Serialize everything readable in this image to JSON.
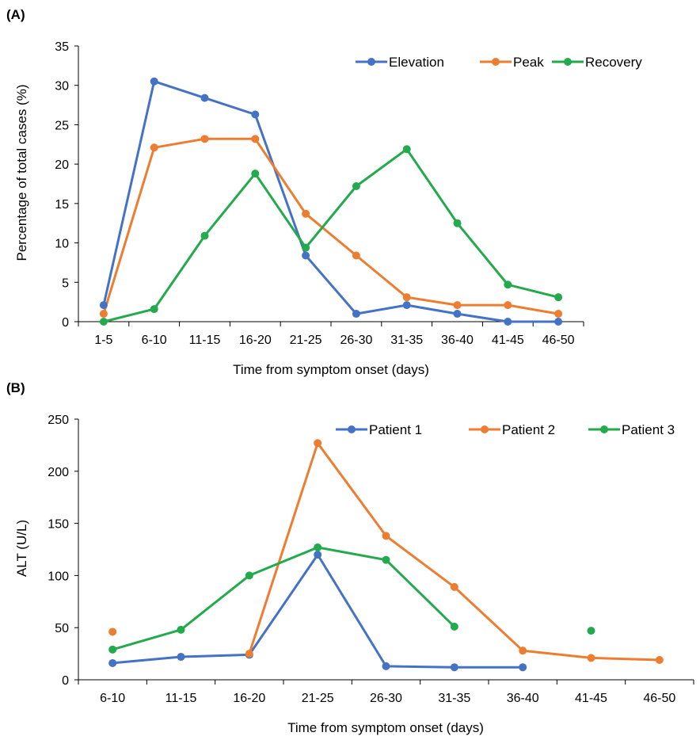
{
  "chart_data": [
    {
      "panel_label": "(A)",
      "type": "line",
      "categories": [
        "1-5",
        "6-10",
        "11-15",
        "16-20",
        "21-25",
        "26-30",
        "31-35",
        "36-40",
        "41-45",
        "46-50"
      ],
      "series": [
        {
          "name": "Elevation",
          "color": "#4472C4",
          "values": [
            2.1,
            30.5,
            28.4,
            26.3,
            8.4,
            1.0,
            2.1,
            1.0,
            0.0,
            0.0
          ]
        },
        {
          "name": "Peak",
          "color": "#ED7D31",
          "values": [
            1.0,
            22.1,
            23.2,
            23.2,
            13.7,
            8.4,
            3.1,
            2.1,
            2.1,
            1.0
          ]
        },
        {
          "name": "Recovery",
          "color": "#22AA4C",
          "values": [
            0.0,
            1.6,
            10.9,
            18.8,
            9.4,
            17.2,
            21.9,
            12.5,
            4.7,
            3.1
          ]
        }
      ],
      "xlabel": "Time from symptom onset (days)",
      "ylabel": "Percentage of total cases (%)",
      "ylim": [
        0,
        35
      ],
      "yticks": [
        0,
        5,
        10,
        15,
        20,
        25,
        30,
        35
      ],
      "legend": "top-right",
      "grid": false
    },
    {
      "panel_label": "(B)",
      "type": "line",
      "categories": [
        "6-10",
        "11-15",
        "16-20",
        "21-25",
        "26-30",
        "31-35",
        "36-40",
        "41-45",
        "46-50"
      ],
      "series": [
        {
          "name": "Patient 1",
          "color": "#4472C4",
          "values": [
            16,
            22,
            24,
            120,
            13,
            12,
            12,
            null,
            null
          ]
        },
        {
          "name": "Patient 2",
          "color": "#ED7D31",
          "values": [
            46,
            null,
            25,
            227,
            138,
            89,
            28,
            21,
            19
          ]
        },
        {
          "name": "Patient 3",
          "color": "#22AA4C",
          "values": [
            29,
            48,
            100,
            127,
            115,
            51,
            null,
            47,
            null
          ]
        }
      ],
      "xlabel": "Time from symptom onset (days)",
      "ylabel": "ALT (U/L)",
      "ylim": [
        0,
        250
      ],
      "yticks": [
        0,
        50,
        100,
        150,
        200,
        250
      ],
      "legend": "top-right",
      "grid": false
    }
  ]
}
